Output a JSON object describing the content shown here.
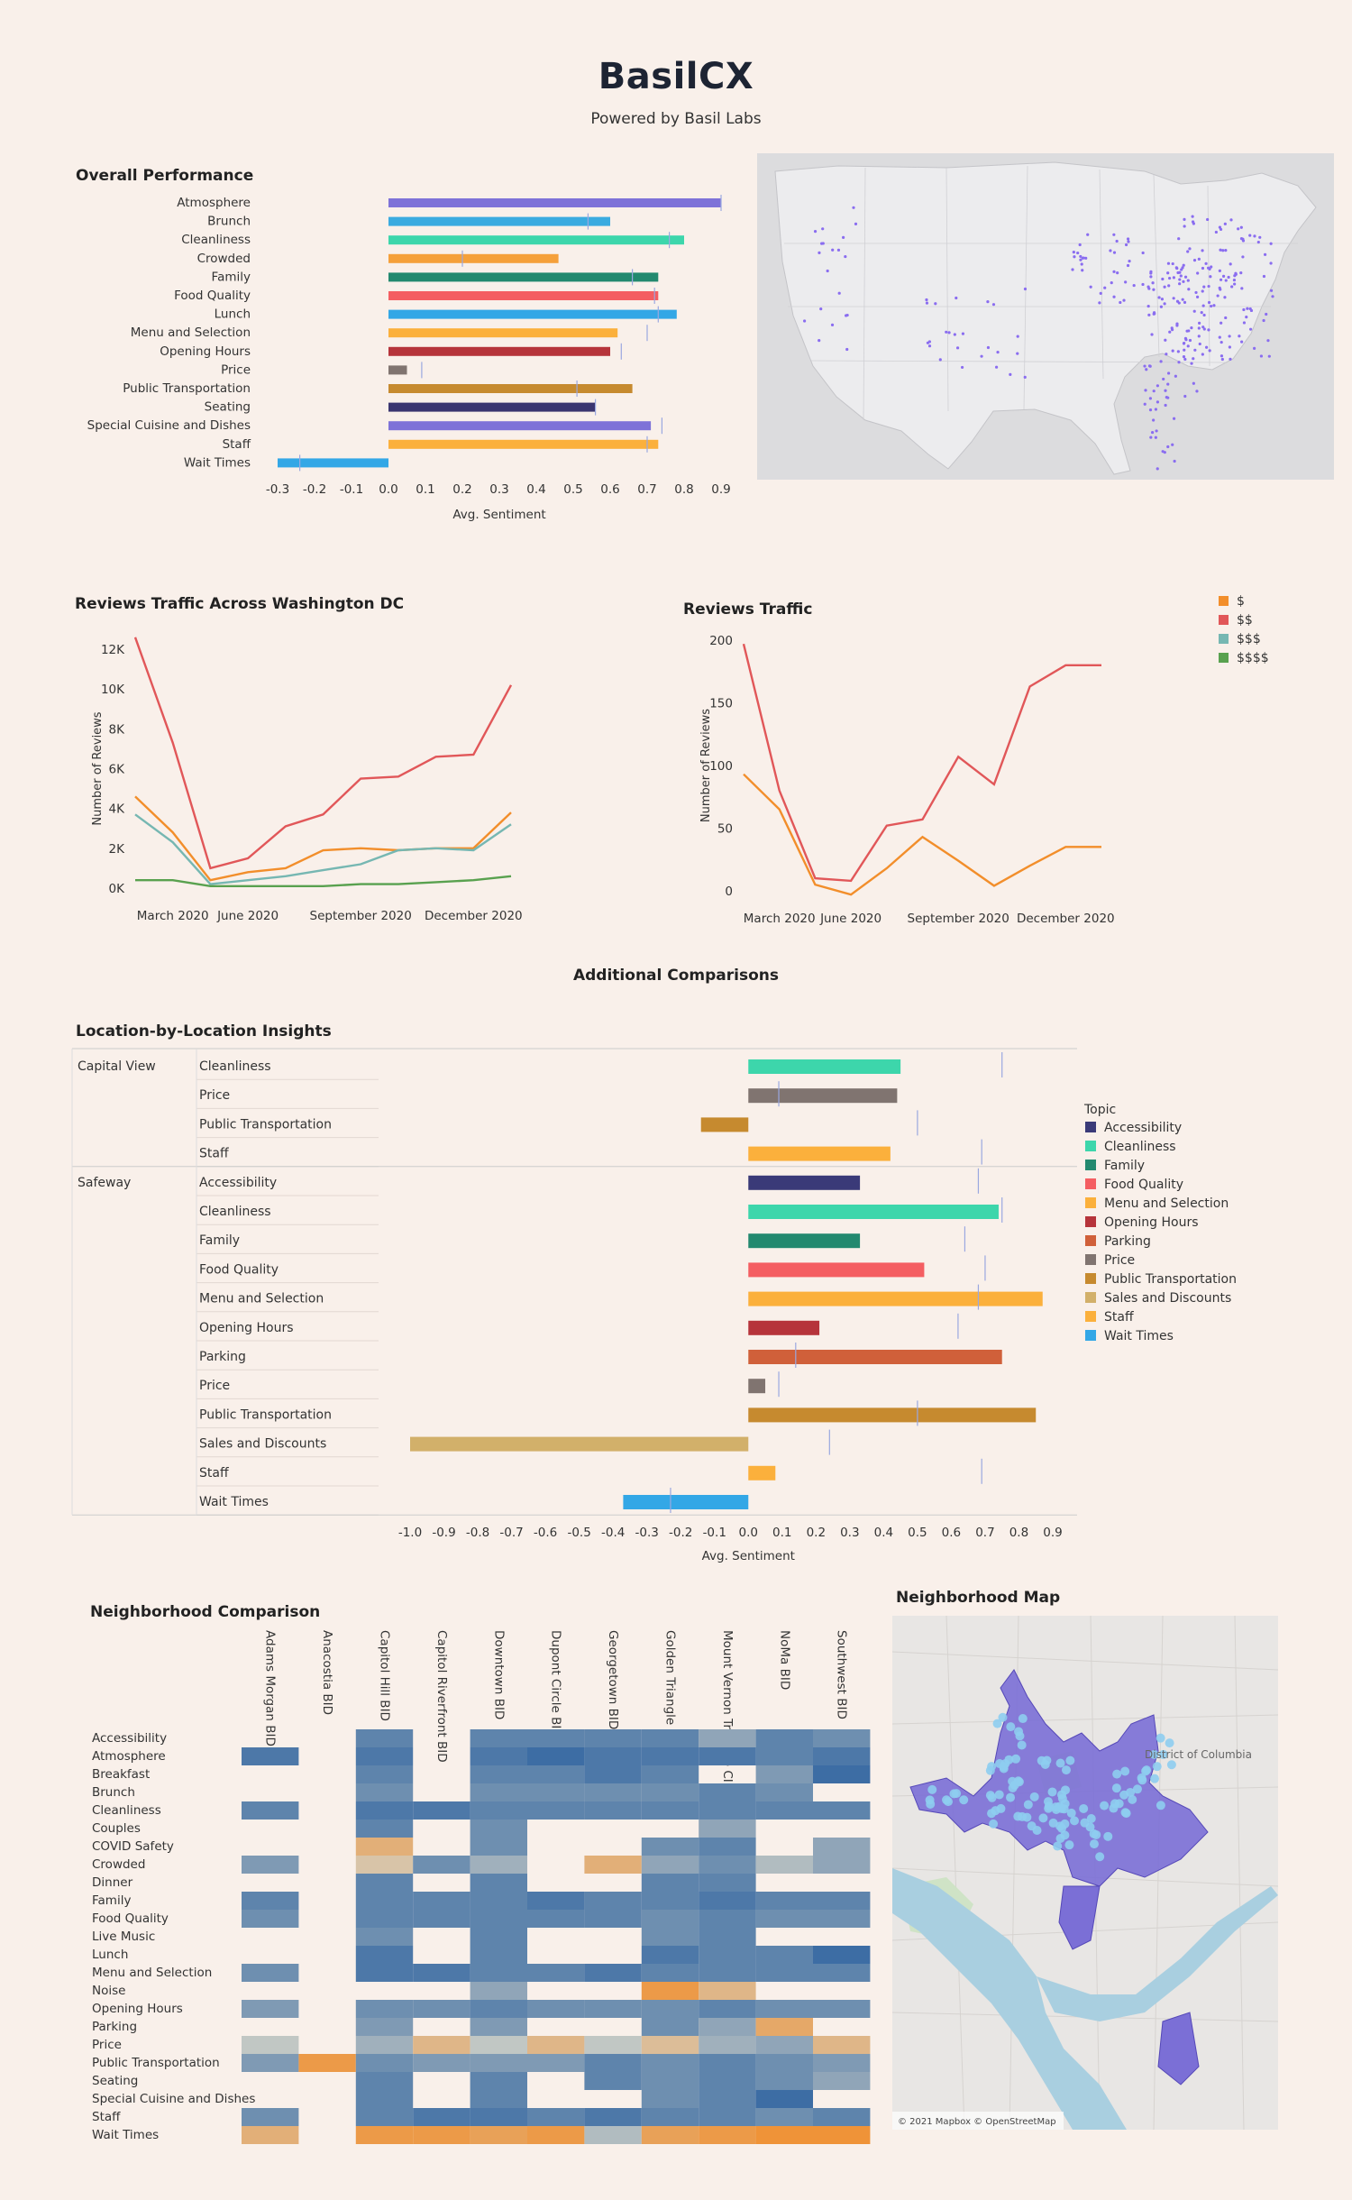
{
  "brand": {
    "title": "BasilCX",
    "subtitle": "Powered by Basil Labs"
  },
  "colors": {
    "Atmosphere": "#7e72d8",
    "Brunch": "#3aabe0",
    "Cleanliness": "#3dd6ab",
    "Crowded": "#f5a03a",
    "Family": "#23896f",
    "Food Quality": "#f45e62",
    "Lunch": "#33a7e6",
    "Menu and Selection": "#fbb03c",
    "Opening Hours": "#b6343b",
    "Price": "#807470",
    "Public Transportation": "#c68a2f",
    "Seating": "#3a3570",
    "Special Cuisine and Dishes": "#7e72d8",
    "Staff": "#fbb03c",
    "Wait Times": "#33a7e6",
    "Accessibility": "#3a3a78",
    "Parking": "#d0603a",
    "Sales and Discounts": "#d2b06a",
    "price_1": "#f28e2b",
    "price_2": "#e15759",
    "price_3": "#76b7b2",
    "price_4": "#59a14f"
  },
  "overall": {
    "title": "Overall Performance",
    "xlabel": "Avg. Sentiment",
    "ticks": [
      "-0.3",
      "-0.2",
      "-0.1",
      "0.0",
      "0.1",
      "0.2",
      "0.3",
      "0.4",
      "0.5",
      "0.6",
      "0.7",
      "0.8",
      "0.9"
    ]
  },
  "reviews_dc": {
    "title": "Reviews Traffic Across Washington DC",
    "ylabel": "Number of Reviews",
    "yticks": [
      "0K",
      "2K",
      "4K",
      "6K",
      "8K",
      "10K",
      "12K"
    ],
    "xticks": [
      "March 2020",
      "June 2020",
      "September 2020",
      "December 2020"
    ]
  },
  "reviews": {
    "title": "Reviews Traffic",
    "ylabel": "Number of Reviews",
    "yticks": [
      "0",
      "50",
      "100",
      "150",
      "200"
    ],
    "xticks": [
      "March 2020",
      "June 2020",
      "September 2020",
      "December 2020"
    ],
    "legend": [
      "$",
      "$$",
      "$$$",
      "$$$$"
    ]
  },
  "additional": {
    "title": "Additional Comparisons"
  },
  "location": {
    "title": "Location-by-Location Insights",
    "xlabel": "Avg. Sentiment",
    "ticks": [
      "-1.0",
      "-0.9",
      "-0.8",
      "-0.7",
      "-0.6",
      "-0.5",
      "-0.4",
      "-0.3",
      "-0.2",
      "-0.1",
      "0.0",
      "0.1",
      "0.2",
      "0.3",
      "0.4",
      "0.5",
      "0.6",
      "0.7",
      "0.8",
      "0.9"
    ],
    "legend_title": "Topic",
    "legend": [
      "Accessibility",
      "Cleanliness",
      "Family",
      "Food Quality",
      "Menu and Selection",
      "Opening Hours",
      "Parking",
      "Price",
      "Public Transportation",
      "Sales and Discounts",
      "Staff",
      "Wait Times"
    ]
  },
  "neighborhood": {
    "title": "Neighborhood Comparison"
  },
  "neighborhood_map": {
    "title": "Neighborhood Map",
    "attribution": "© 2021 Mapbox © OpenStreetMap",
    "label": "District of Columbia"
  },
  "chart_data": [
    {
      "id": "overall",
      "type": "bar",
      "orientation": "horizontal",
      "title": "Overall Performance",
      "xlabel": "Avg. Sentiment",
      "xlim": [
        -0.3,
        0.9
      ],
      "categories": [
        "Atmosphere",
        "Brunch",
        "Cleanliness",
        "Crowded",
        "Family",
        "Food Quality",
        "Lunch",
        "Menu and Selection",
        "Opening Hours",
        "Price",
        "Public Transportation",
        "Seating",
        "Special Cuisine and Dishes",
        "Staff",
        "Wait Times"
      ],
      "values": [
        0.9,
        0.6,
        0.8,
        0.46,
        0.73,
        0.73,
        0.78,
        0.62,
        0.6,
        0.05,
        0.66,
        0.56,
        0.71,
        0.73,
        -0.3
      ],
      "reference": [
        0.9,
        0.54,
        0.76,
        0.2,
        0.66,
        0.72,
        0.73,
        0.7,
        0.63,
        0.09,
        0.51,
        0.56,
        0.74,
        0.7,
        -0.24
      ]
    },
    {
      "id": "reviews_dc",
      "type": "line",
      "title": "Reviews Traffic Across Washington DC",
      "ylabel": "Number of Reviews",
      "ylim": [
        0,
        12000
      ],
      "x": [
        "2020-02",
        "2020-03",
        "2020-04",
        "2020-05",
        "2020-06",
        "2020-07",
        "2020-08",
        "2020-09",
        "2020-10",
        "2020-11",
        "2020-12"
      ],
      "series": [
        {
          "name": "$",
          "values": [
            4600,
            2800,
            400,
            800,
            1000,
            1900,
            2000,
            1900,
            2000,
            2000,
            3800
          ]
        },
        {
          "name": "$$",
          "values": [
            12600,
            7300,
            1000,
            1500,
            3100,
            3700,
            5500,
            5600,
            6600,
            6700,
            10200
          ]
        },
        {
          "name": "$$$",
          "values": [
            3700,
            2300,
            200,
            400,
            600,
            900,
            1200,
            1900,
            2000,
            1900,
            3200
          ]
        },
        {
          "name": "$$$$",
          "values": [
            400,
            400,
            100,
            100,
            100,
            100,
            200,
            200,
            300,
            400,
            600
          ]
        }
      ]
    },
    {
      "id": "reviews",
      "type": "line",
      "title": "Reviews Traffic",
      "ylabel": "Number of Reviews",
      "ylim": [
        0,
        200
      ],
      "x": [
        "2020-02",
        "2020-03",
        "2020-04",
        "2020-05",
        "2020-06",
        "2020-07",
        "2020-08",
        "2020-09",
        "2020-10",
        "2020-11",
        "2020-12"
      ],
      "series": [
        {
          "name": "$",
          "values": [
            93,
            65,
            5,
            -3,
            18,
            43,
            24,
            4,
            20,
            35,
            35
          ]
        },
        {
          "name": "$$",
          "values": [
            197,
            80,
            10,
            8,
            52,
            57,
            107,
            85,
            163,
            180,
            180
          ]
        }
      ]
    },
    {
      "id": "location",
      "type": "bar",
      "orientation": "horizontal",
      "title": "Location-by-Location Insights",
      "xlabel": "Avg. Sentiment",
      "xlim": [
        -1.0,
        0.9
      ],
      "groups": [
        {
          "name": "Capital View",
          "categories": [
            "Cleanliness",
            "Price",
            "Public Transportation",
            "Staff"
          ],
          "values": [
            0.45,
            0.44,
            -0.14,
            0.42
          ],
          "reference": [
            0.75,
            0.09,
            0.5,
            0.69
          ]
        },
        {
          "name": "Safeway",
          "categories": [
            "Accessibility",
            "Cleanliness",
            "Family",
            "Food Quality",
            "Menu and Selection",
            "Opening Hours",
            "Parking",
            "Price",
            "Public Transportation",
            "Sales and Discounts",
            "Staff",
            "Wait Times"
          ],
          "values": [
            0.33,
            0.74,
            0.33,
            0.52,
            0.87,
            0.21,
            0.75,
            0.05,
            0.85,
            -1.0,
            0.08,
            -0.37
          ],
          "reference": [
            0.68,
            0.75,
            0.64,
            0.7,
            0.68,
            0.62,
            0.14,
            0.09,
            0.5,
            0.24,
            0.69,
            -0.23
          ]
        }
      ]
    },
    {
      "id": "neighborhood",
      "type": "heatmap",
      "title": "Neighborhood Comparison",
      "columns": [
        "Adams Morgan BID",
        "Anacostia BID",
        "Capitol Hill BID",
        "Capitol Riverfront BID",
        "Downtown BID",
        "Dupont Circle BID",
        "Georgetown BID",
        "Golden Triangle BID",
        "Mount Vernon Triangle CID",
        "NoMa BID",
        "Southwest BID"
      ],
      "rows": [
        "Accessibility",
        "Atmosphere",
        "Breakfast",
        "Brunch",
        "Cleanliness",
        "Couples",
        "COVID Safety",
        "Crowded",
        "Dinner",
        "Family",
        "Food Quality",
        "Live Music",
        "Lunch",
        "Menu and Selection",
        "Noise",
        "Opening Hours",
        "Parking",
        "Price",
        "Public Transportation",
        "Seating",
        "Special Cuisine and Dishes",
        "Staff",
        "Wait Times"
      ],
      "scale": "sentiment: 1 = strongly positive (dark blue), 0 = neutral, -1 = negative (orange); null = no data",
      "values": [
        [
          null,
          null,
          0.7,
          null,
          0.7,
          0.7,
          0.7,
          0.7,
          0.4,
          0.7,
          0.6
        ],
        [
          0.8,
          null,
          0.8,
          null,
          0.8,
          0.9,
          0.8,
          0.8,
          0.8,
          0.7,
          0.8
        ],
        [
          null,
          null,
          0.7,
          null,
          0.7,
          0.7,
          0.8,
          0.7,
          null,
          0.5,
          0.9
        ],
        [
          null,
          null,
          0.6,
          null,
          0.6,
          0.6,
          0.6,
          0.6,
          0.7,
          0.6,
          null
        ],
        [
          0.7,
          null,
          0.8,
          0.8,
          0.7,
          0.7,
          0.7,
          0.7,
          0.7,
          0.7,
          0.7
        ],
        [
          null,
          null,
          0.7,
          null,
          0.6,
          null,
          null,
          null,
          0.4,
          null,
          null
        ],
        [
          null,
          null,
          -0.5,
          null,
          0.6,
          null,
          null,
          0.6,
          0.7,
          null,
          0.4
        ],
        [
          0.5,
          null,
          -0.2,
          0.6,
          0.3,
          null,
          -0.5,
          0.4,
          0.6,
          0.2,
          0.4
        ],
        [
          null,
          null,
          0.7,
          null,
          0.7,
          null,
          null,
          0.7,
          0.7,
          null,
          null
        ],
        [
          0.7,
          null,
          0.7,
          0.7,
          0.7,
          0.8,
          0.7,
          0.7,
          0.8,
          0.7,
          0.7
        ],
        [
          0.6,
          null,
          0.7,
          0.7,
          0.7,
          0.7,
          0.7,
          0.6,
          0.7,
          0.6,
          0.6
        ],
        [
          null,
          null,
          0.6,
          null,
          0.7,
          null,
          null,
          0.6,
          0.7,
          null,
          null
        ],
        [
          null,
          null,
          0.8,
          null,
          0.7,
          null,
          null,
          0.8,
          0.7,
          0.7,
          0.9
        ],
        [
          0.6,
          null,
          0.8,
          0.8,
          0.7,
          0.7,
          0.8,
          0.7,
          0.7,
          0.7,
          0.7
        ],
        [
          null,
          null,
          null,
          null,
          0.4,
          null,
          null,
          -0.8,
          -0.4,
          null,
          null
        ],
        [
          0.5,
          null,
          0.6,
          0.6,
          0.7,
          0.6,
          0.6,
          0.6,
          0.7,
          0.6,
          0.6
        ],
        [
          null,
          null,
          0.5,
          null,
          0.5,
          null,
          null,
          0.6,
          0.4,
          -0.6,
          null
        ],
        [
          0.1,
          null,
          0.3,
          -0.4,
          0.1,
          -0.4,
          0.1,
          -0.3,
          0.3,
          0.4,
          -0.4
        ],
        [
          0.5,
          -0.8,
          0.6,
          0.5,
          0.5,
          0.5,
          0.7,
          0.6,
          0.7,
          0.6,
          0.5
        ],
        [
          null,
          null,
          0.7,
          null,
          0.7,
          null,
          0.7,
          0.6,
          0.7,
          0.6,
          0.4
        ],
        [
          null,
          null,
          0.7,
          null,
          0.7,
          null,
          null,
          0.6,
          0.7,
          0.9,
          null
        ],
        [
          0.6,
          null,
          0.7,
          0.8,
          0.8,
          0.7,
          0.8,
          0.7,
          0.7,
          0.6,
          0.7
        ],
        [
          -0.5,
          null,
          -0.8,
          -0.8,
          -0.7,
          -0.8,
          0.2,
          -0.7,
          -0.8,
          -0.9,
          -0.9
        ]
      ]
    }
  ]
}
